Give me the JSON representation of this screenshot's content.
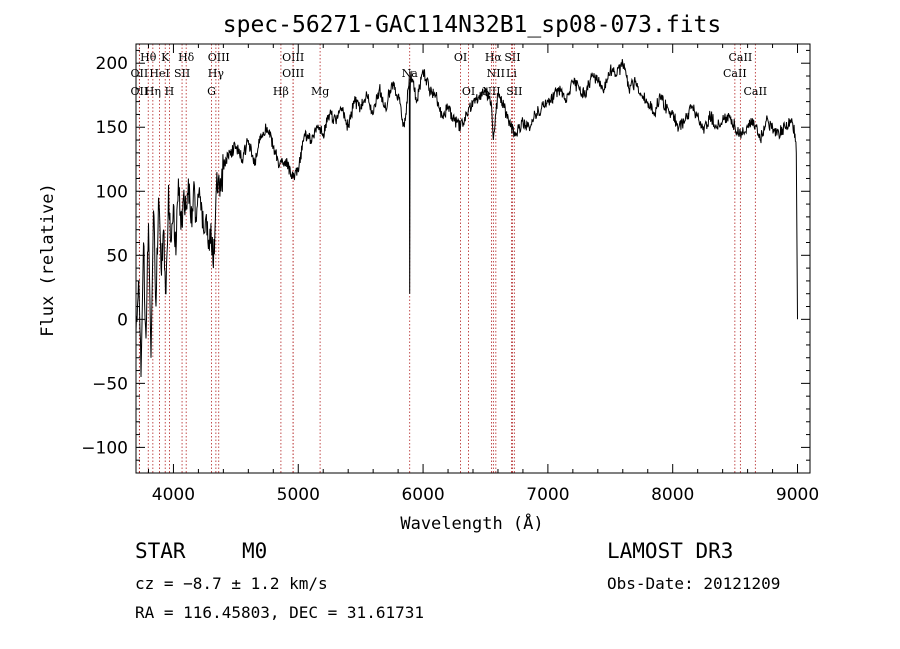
{
  "chart_data": {
    "type": "line",
    "title": "spec-56271-GAC114N32B1_sp08-073.fits",
    "xlabel": "Wavelength (Å)",
    "ylabel": "Flux (relative)",
    "xlim": [
      3700,
      9100
    ],
    "ylim": [
      -120,
      215
    ],
    "xticks": [
      4000,
      5000,
      6000,
      7000,
      8000,
      9000
    ],
    "yticks": [
      -100,
      -50,
      0,
      50,
      100,
      150,
      200
    ],
    "x_tick_labels": [
      "4000",
      "5000",
      "6000",
      "7000",
      "8000",
      "9000"
    ],
    "y_tick_labels": [
      "−100",
      "−50",
      "0",
      "50",
      "100",
      "150",
      "200"
    ],
    "spectrum": {
      "x": [
        3700,
        3720,
        3740,
        3760,
        3780,
        3800,
        3820,
        3840,
        3860,
        3880,
        3900,
        3920,
        3940,
        3960,
        3980,
        4000,
        4020,
        4040,
        4060,
        4080,
        4100,
        4120,
        4140,
        4160,
        4180,
        4200,
        4220,
        4240,
        4260,
        4280,
        4300,
        4320,
        4340,
        4360,
        4380,
        4400,
        4450,
        4500,
        4550,
        4600,
        4650,
        4700,
        4750,
        4800,
        4850,
        4900,
        4950,
        5000,
        5050,
        5100,
        5150,
        5200,
        5250,
        5300,
        5350,
        5400,
        5450,
        5500,
        5550,
        5600,
        5650,
        5700,
        5750,
        5800,
        5850,
        5880,
        5890,
        5893,
        5896,
        5900,
        5920,
        5950,
        6000,
        6050,
        6100,
        6150,
        6200,
        6250,
        6300,
        6350,
        6400,
        6450,
        6500,
        6550,
        6563,
        6580,
        6600,
        6650,
        6700,
        6750,
        6800,
        6850,
        6900,
        6950,
        7000,
        7050,
        7100,
        7150,
        7200,
        7250,
        7300,
        7350,
        7400,
        7450,
        7500,
        7550,
        7600,
        7650,
        7700,
        7750,
        7800,
        7850,
        7900,
        7950,
        8000,
        8050,
        8100,
        8150,
        8200,
        8250,
        8300,
        8350,
        8400,
        8450,
        8500,
        8550,
        8600,
        8650,
        8700,
        8750,
        8800,
        8850,
        8900,
        8950,
        8980,
        8990,
        9000
      ],
      "y": [
        -10,
        30,
        -45,
        60,
        -15,
        75,
        -30,
        85,
        10,
        95,
        40,
        70,
        20,
        105,
        60,
        90,
        50,
        110,
        70,
        95,
        85,
        110,
        75,
        100,
        80,
        95,
        85,
        70,
        80,
        55,
        75,
        40,
        95,
        110,
        100,
        120,
        130,
        135,
        125,
        140,
        120,
        145,
        150,
        135,
        120,
        125,
        110,
        115,
        145,
        140,
        150,
        145,
        160,
        155,
        165,
        150,
        170,
        165,
        175,
        160,
        180,
        165,
        185,
        175,
        150,
        180,
        190,
        20,
        175,
        190,
        185,
        170,
        195,
        180,
        175,
        160,
        165,
        155,
        150,
        160,
        170,
        175,
        180,
        165,
        140,
        160,
        175,
        165,
        150,
        145,
        155,
        150,
        160,
        165,
        170,
        175,
        180,
        170,
        185,
        180,
        175,
        190,
        185,
        180,
        195,
        190,
        200,
        180,
        185,
        175,
        170,
        160,
        175,
        165,
        160,
        150,
        155,
        165,
        160,
        145,
        160,
        150,
        155,
        160,
        150,
        145,
        150,
        155,
        140,
        155,
        150,
        145,
        150,
        155,
        145,
        130,
        0
      ]
    },
    "lines": [
      {
        "label": "Hθ",
        "x": 3798,
        "row": 0
      },
      {
        "label": "OII",
        "x": 3727,
        "row": 1
      },
      {
        "label": "OII",
        "x": 3727,
        "row": 2
      },
      {
        "label": "K",
        "x": 3934,
        "row": 0
      },
      {
        "label": "HeI",
        "x": 3889,
        "row": 1
      },
      {
        "label": "Hη",
        "x": 3835,
        "row": 2
      },
      {
        "label": "Hδ",
        "x": 4102,
        "row": 0
      },
      {
        "label": "SII",
        "x": 4069,
        "row": 1
      },
      {
        "label": "H",
        "x": 3968,
        "row": 2
      },
      {
        "label": "OIII",
        "x": 4363,
        "row": 0
      },
      {
        "label": "Hγ",
        "x": 4340,
        "row": 1
      },
      {
        "label": "G",
        "x": 4305,
        "row": 2
      },
      {
        "label": "OIII",
        "x": 4959,
        "row": 0
      },
      {
        "label": "OIII",
        "x": 4959,
        "row": 1
      },
      {
        "label": "Hβ",
        "x": 4861,
        "row": 2
      },
      {
        "label": "Mg",
        "x": 5175,
        "row": 2
      },
      {
        "label": "Na",
        "x": 5893,
        "row": 1
      },
      {
        "label": "OI",
        "x": 6300,
        "row": 0
      },
      {
        "label": "OI",
        "x": 6364,
        "row": 2
      },
      {
        "label": "Hα",
        "x": 6563,
        "row": 0
      },
      {
        "label": "SII",
        "x": 6716,
        "row": 0
      },
      {
        "label": "NII",
        "x": 6583,
        "row": 1
      },
      {
        "label": "Li",
        "x": 6708,
        "row": 1
      },
      {
        "label": "NII",
        "x": 6548,
        "row": 2
      },
      {
        "label": "SII",
        "x": 6731,
        "row": 2
      },
      {
        "label": "CaII",
        "x": 8542,
        "row": 0
      },
      {
        "label": "CaII",
        "x": 8498,
        "row": 1
      },
      {
        "label": "CaII",
        "x": 8662,
        "row": 2
      }
    ]
  },
  "info": {
    "type": "STAR",
    "subclass": "M0",
    "cz": "cz = −8.7 ± 1.2 km/s",
    "radec": "RA = 116.45803, DEC =  31.61731",
    "survey": "LAMOST DR3",
    "obs_date": "Obs-Date: 20121209"
  },
  "colors": {
    "line": "#000000",
    "marker": "#b22222",
    "background": "#ffffff"
  }
}
